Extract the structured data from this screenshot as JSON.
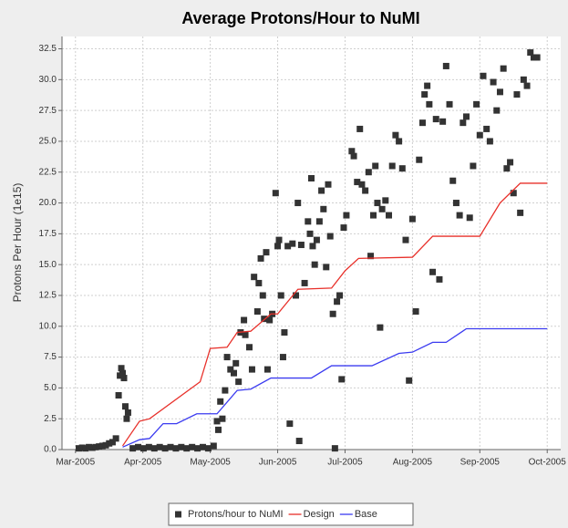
{
  "chart_data": {
    "type": "scatter-line",
    "title": "Average Protons/Hour to NuMI",
    "y_label": "Protons Per Hour (1e15)",
    "xlim": [
      -0.2,
      7.2
    ],
    "xticks": [
      {
        "value": 0,
        "label": "Mar-2005"
      },
      {
        "value": 1,
        "label": "Apr-2005"
      },
      {
        "value": 2,
        "label": "May-2005"
      },
      {
        "value": 3,
        "label": "Jun-2005"
      },
      {
        "value": 4,
        "label": "Jul-2005"
      },
      {
        "value": 5,
        "label": "Aug-2005"
      },
      {
        "value": 6,
        "label": "Sep-2005"
      },
      {
        "value": 7,
        "label": "Oct-2005"
      }
    ],
    "ylim": [
      0,
      33.5
    ],
    "yticks": [
      {
        "value": 0,
        "label": "0.0"
      },
      2.5,
      {
        "value": 5,
        "label": "5.0"
      },
      7.5,
      {
        "value": 10,
        "label": "10.0"
      },
      12.5,
      {
        "value": 15,
        "label": "15.0"
      },
      17.5,
      {
        "value": 20,
        "label": "20.0"
      },
      22.5,
      {
        "value": 25,
        "label": "25.0"
      },
      27.5,
      {
        "value": 30,
        "label": "30.0"
      },
      32.5
    ],
    "grid": true,
    "legend": "bottom",
    "series": [
      {
        "name": "Protons/hour to NuMI",
        "kind": "scatter",
        "color": "#333333",
        "x": [
          0.05,
          0.1,
          0.15,
          0.2,
          0.25,
          0.3,
          0.35,
          0.4,
          0.45,
          0.5,
          0.55,
          0.6,
          0.64,
          0.66,
          0.68,
          0.7,
          0.72,
          0.74,
          0.76,
          0.78,
          0.85,
          0.93,
          1.01,
          1.09,
          1.17,
          1.25,
          1.33,
          1.41,
          1.49,
          1.57,
          1.65,
          1.73,
          1.81,
          1.89,
          1.97,
          2.05,
          2.1,
          2.12,
          2.15,
          2.18,
          2.22,
          2.25,
          2.3,
          2.35,
          2.38,
          2.42,
          2.45,
          2.5,
          2.52,
          2.58,
          2.62,
          2.65,
          2.7,
          2.72,
          2.75,
          2.78,
          2.8,
          2.83,
          2.85,
          2.88,
          2.92,
          2.97,
          3.0,
          3.02,
          3.05,
          3.08,
          3.1,
          3.15,
          3.18,
          3.22,
          3.27,
          3.3,
          3.32,
          3.35,
          3.4,
          3.45,
          3.48,
          3.5,
          3.52,
          3.55,
          3.58,
          3.62,
          3.65,
          3.68,
          3.72,
          3.75,
          3.78,
          3.82,
          3.85,
          3.88,
          3.92,
          3.95,
          3.98,
          4.02,
          4.1,
          4.13,
          4.18,
          4.22,
          4.25,
          4.3,
          4.35,
          4.38,
          4.42,
          4.45,
          4.48,
          4.52,
          4.55,
          4.6,
          4.65,
          4.7,
          4.75,
          4.8,
          4.85,
          4.9,
          4.95,
          5.0,
          5.05,
          5.1,
          5.15,
          5.18,
          5.22,
          5.25,
          5.3,
          5.35,
          5.4,
          5.45,
          5.5,
          5.55,
          5.6,
          5.65,
          5.7,
          5.75,
          5.8,
          5.85,
          5.9,
          5.95,
          6.0,
          6.05,
          6.1,
          6.15,
          6.2,
          6.25,
          6.3,
          6.35,
          6.4,
          6.45,
          6.5,
          6.55,
          6.6,
          6.65,
          6.7,
          6.75,
          6.8,
          6.85
        ],
        "values": [
          0.1,
          0.15,
          0.1,
          0.2,
          0.15,
          0.2,
          0.25,
          0.3,
          0.35,
          0.5,
          0.6,
          0.9,
          4.4,
          6.0,
          6.6,
          6.2,
          5.8,
          3.5,
          2.5,
          3.0,
          0.1,
          0.2,
          0.1,
          0.2,
          0.1,
          0.2,
          0.1,
          0.2,
          0.1,
          0.2,
          0.1,
          0.2,
          0.1,
          0.2,
          0.1,
          0.3,
          2.3,
          1.6,
          3.9,
          2.5,
          4.8,
          7.5,
          6.5,
          6.2,
          7.0,
          5.5,
          9.5,
          10.5,
          9.3,
          8.3,
          6.5,
          14.0,
          11.2,
          13.5,
          15.5,
          12.5,
          10.6,
          16.0,
          6.5,
          10.5,
          11.0,
          20.8,
          16.5,
          17.0,
          12.5,
          7.5,
          9.5,
          16.5,
          2.1,
          16.7,
          12.5,
          20.0,
          0.7,
          16.6,
          13.5,
          18.5,
          17.5,
          22.0,
          16.5,
          15.0,
          17.0,
          18.5,
          21.0,
          19.5,
          14.8,
          21.5,
          17.3,
          11.0,
          0.1,
          12.0,
          12.5,
          5.7,
          18.0,
          19.0,
          24.2,
          23.8,
          21.7,
          26.0,
          21.5,
          21.0,
          22.5,
          15.7,
          19.0,
          23.0,
          20.0,
          9.9,
          19.5,
          20.2,
          19.0,
          23.0,
          25.5,
          25.0,
          22.8,
          17.0,
          5.6,
          18.7,
          11.2,
          23.5,
          26.5,
          28.8,
          29.5,
          28.0,
          14.4,
          26.8,
          13.8,
          26.6,
          31.1,
          28.0,
          21.8,
          20.0,
          19.0,
          26.5,
          27.0,
          18.8,
          23.0,
          28.0,
          25.5,
          30.3,
          26.0,
          25.0,
          29.8,
          27.5,
          29.0,
          30.9,
          22.8,
          23.3,
          20.8,
          28.8,
          19.2,
          30.0,
          29.5,
          32.2,
          31.8,
          31.8
        ]
      },
      {
        "name": "Design",
        "kind": "line",
        "color": "#e8302a",
        "x": [
          0.7,
          0.95,
          1.1,
          1.85,
          2.0,
          2.25,
          2.4,
          2.6,
          2.9,
          3.0,
          3.3,
          3.8,
          4.0,
          4.2,
          5.0,
          5.3,
          6.0,
          6.3,
          6.6,
          7.0
        ],
        "values": [
          0.3,
          2.3,
          2.5,
          5.5,
          8.2,
          8.3,
          9.5,
          9.6,
          11,
          11,
          13,
          13.1,
          14.5,
          15.5,
          15.6,
          17.3,
          17.3,
          20,
          21.6,
          21.6
        ]
      },
      {
        "name": "Base",
        "kind": "line",
        "color": "#3b3bf0",
        "x": [
          0.7,
          0.95,
          1.1,
          1.3,
          1.5,
          1.8,
          2.1,
          2.4,
          2.6,
          2.9,
          3.5,
          3.8,
          4.4,
          4.8,
          5.0,
          5.3,
          5.5,
          5.8,
          7.0
        ],
        "values": [
          0.2,
          0.8,
          0.9,
          2.1,
          2.1,
          2.9,
          2.9,
          4.8,
          4.9,
          5.8,
          5.8,
          6.8,
          6.8,
          7.8,
          7.9,
          8.7,
          8.7,
          9.8,
          9.8
        ]
      }
    ]
  }
}
